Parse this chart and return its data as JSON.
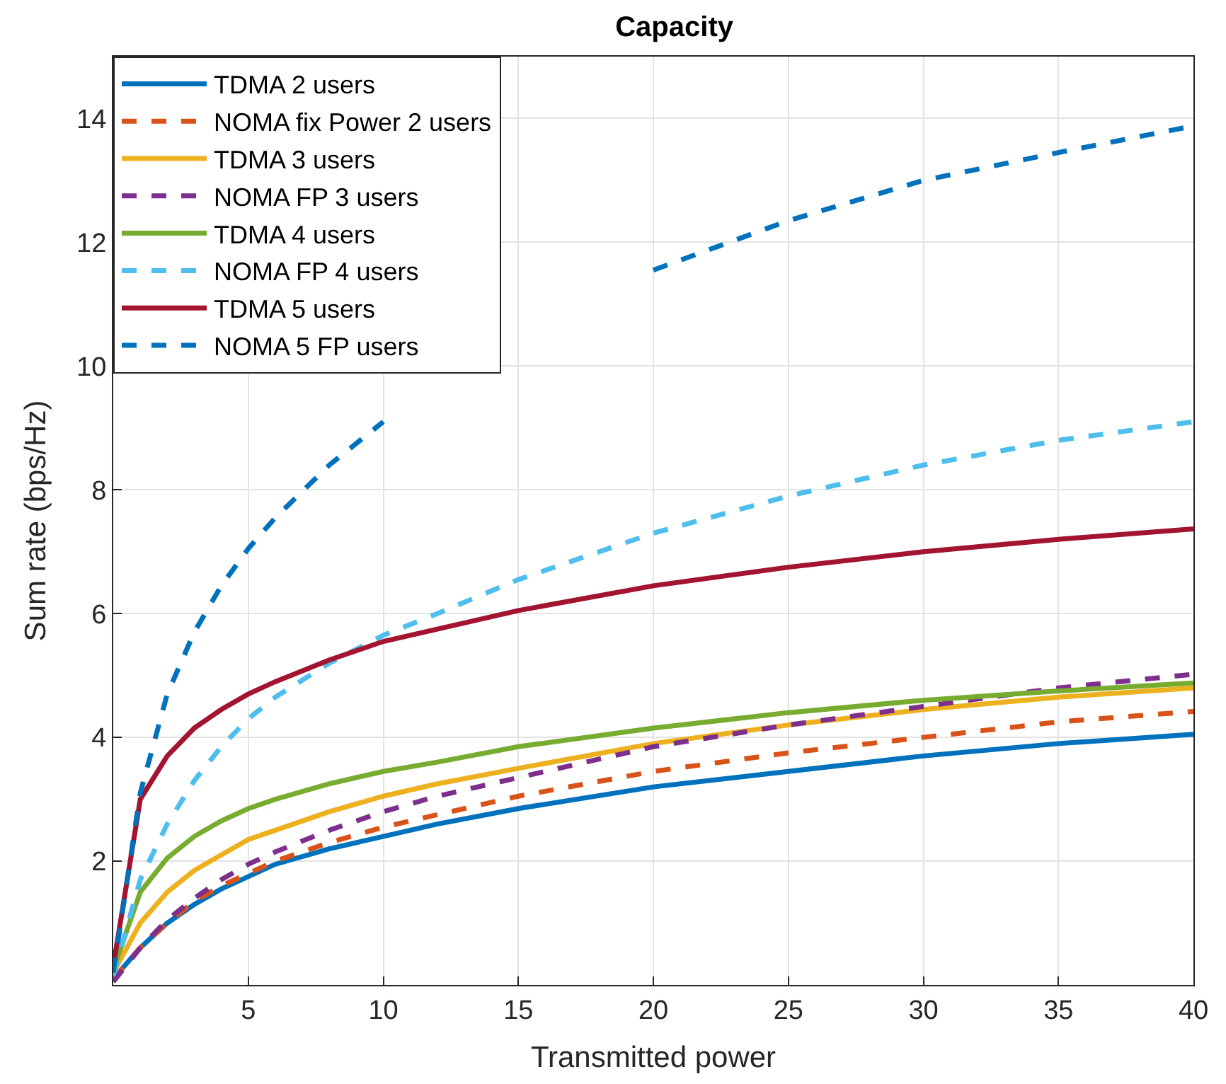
{
  "chart_data": {
    "type": "line",
    "title": "Capacity",
    "xlabel": "Transmitted power",
    "ylabel": "Sum rate (bps/Hz)",
    "x": [
      0,
      1,
      2,
      3,
      4,
      5,
      6,
      8,
      10,
      12,
      15,
      20,
      25,
      30,
      35,
      40
    ],
    "xlim": [
      0,
      40
    ],
    "xticks": [
      5,
      10,
      15,
      20,
      25,
      30,
      35,
      40
    ],
    "ylim": [
      0,
      15
    ],
    "yticks": [
      2,
      4,
      6,
      8,
      10,
      12,
      14
    ],
    "grid": true,
    "legend": "top left",
    "marker": "none",
    "series": [
      {
        "name": "TDMA 2 users",
        "color": "#0072bd",
        "line_style": "solid",
        "values": [
          0.1,
          0.6,
          1.0,
          1.3,
          1.55,
          1.75,
          1.95,
          2.2,
          2.4,
          2.6,
          2.85,
          3.2,
          3.45,
          3.7,
          3.9,
          4.05
        ]
      },
      {
        "name": "NOMA fix Power 2 users",
        "color": "#d95319",
        "line_style": "dashed",
        "values": [
          0.1,
          0.6,
          1.0,
          1.35,
          1.6,
          1.8,
          2.0,
          2.3,
          2.55,
          2.75,
          3.05,
          3.45,
          3.75,
          4.0,
          4.25,
          4.42
        ]
      },
      {
        "name": "TDMA 3 users",
        "color": "#edb120",
        "line_style": "solid",
        "values": [
          0.2,
          1.0,
          1.5,
          1.85,
          2.1,
          2.35,
          2.5,
          2.8,
          3.05,
          3.25,
          3.5,
          3.9,
          4.2,
          4.45,
          4.65,
          4.8
        ]
      },
      {
        "name": "NOMA FP 3 users",
        "color": "#7e2f8e",
        "line_style": "dashed",
        "values": [
          0.05,
          0.6,
          1.05,
          1.4,
          1.7,
          1.95,
          2.15,
          2.5,
          2.8,
          3.05,
          3.35,
          3.85,
          4.2,
          4.5,
          4.8,
          5.02
        ]
      },
      {
        "name": "TDMA 4 users",
        "color": "#77ac30",
        "line_style": "solid",
        "values": [
          0.25,
          1.5,
          2.05,
          2.4,
          2.65,
          2.85,
          3.0,
          3.25,
          3.45,
          3.6,
          3.85,
          4.15,
          4.4,
          4.6,
          4.75,
          4.88
        ]
      },
      {
        "name": "NOMA FP 4 users",
        "color": "#4dbeee",
        "line_style": "dashed",
        "values": [
          0.15,
          1.7,
          2.6,
          3.3,
          3.85,
          4.3,
          4.65,
          5.2,
          5.65,
          6.0,
          6.55,
          7.3,
          7.9,
          8.4,
          8.8,
          9.1
        ]
      },
      {
        "name": "TDMA 5 users",
        "color": "#a2142f",
        "line_style": "solid",
        "values": [
          0.3,
          3.0,
          3.7,
          4.15,
          4.45,
          4.7,
          4.9,
          5.25,
          5.55,
          5.75,
          6.05,
          6.45,
          6.75,
          7.0,
          7.2,
          7.37
        ]
      },
      {
        "name": "NOMA 5 FP users",
        "color": "#0072bd",
        "line_style": "dashed",
        "values": [
          0.2,
          3.1,
          4.7,
          5.7,
          6.45,
          7.05,
          7.55,
          8.4,
          9.1,
          null,
          null,
          11.55,
          12.35,
          13.0,
          13.45,
          13.88
        ]
      }
    ]
  }
}
